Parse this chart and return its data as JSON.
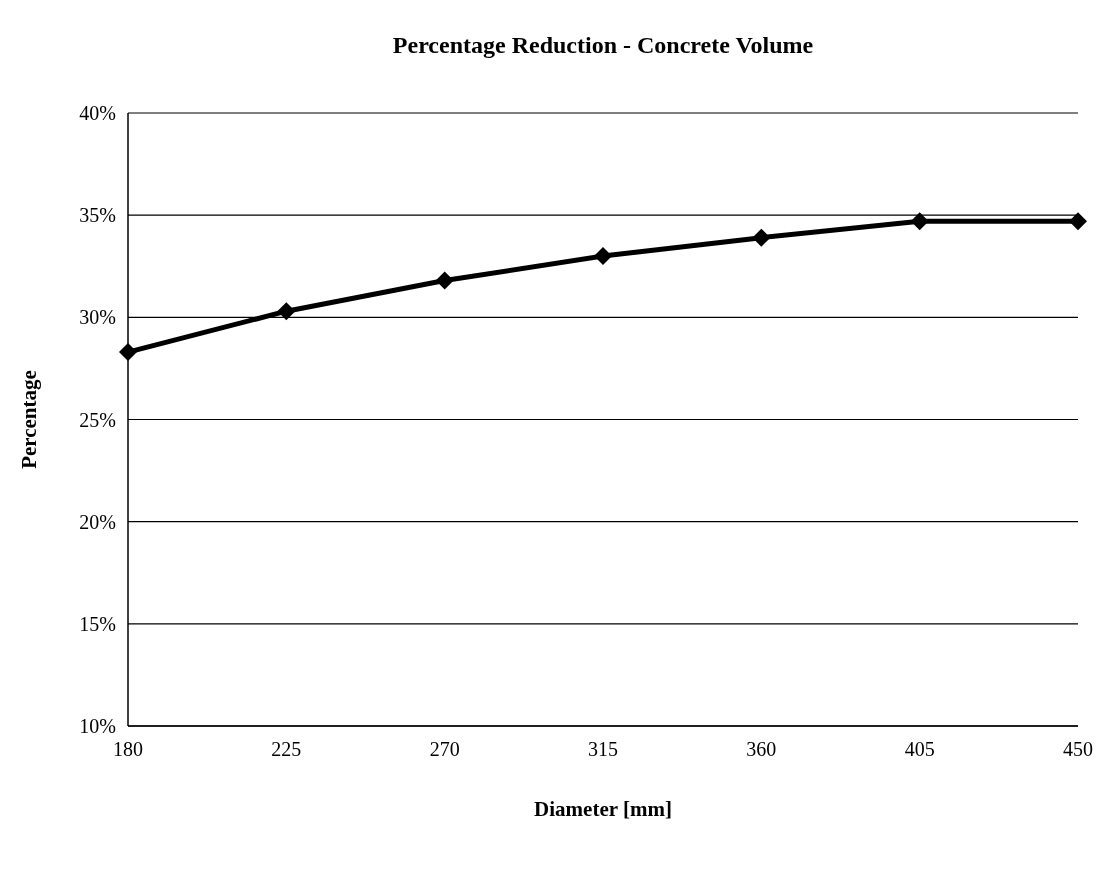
{
  "chart_data": {
    "type": "line",
    "title": "Percentage Reduction - Concrete Volume",
    "xlabel": "Diameter [mm]",
    "ylabel": "Percentage",
    "x": [
      180,
      225,
      270,
      315,
      360,
      405,
      450
    ],
    "series": [
      {
        "color": "#000000",
        "values": [
          28.3,
          30.3,
          31.8,
          33.0,
          33.9,
          34.7,
          34.7
        ]
      }
    ],
    "xlim": [
      180,
      450
    ],
    "xticks": [
      180,
      225,
      270,
      315,
      360,
      405,
      450
    ],
    "ylim": [
      10,
      40
    ],
    "yticks": [
      {
        "value": 10,
        "label": "10%"
      },
      {
        "value": 15,
        "label": "15%"
      },
      {
        "value": 20,
        "label": "20%"
      },
      {
        "value": 25,
        "label": "25%"
      },
      {
        "value": 30,
        "label": "30%"
      },
      {
        "value": 35,
        "label": "35%"
      },
      {
        "value": 40,
        "label": "40%"
      }
    ],
    "grid": "y",
    "marker": "diamond",
    "line_style": "solid"
  }
}
